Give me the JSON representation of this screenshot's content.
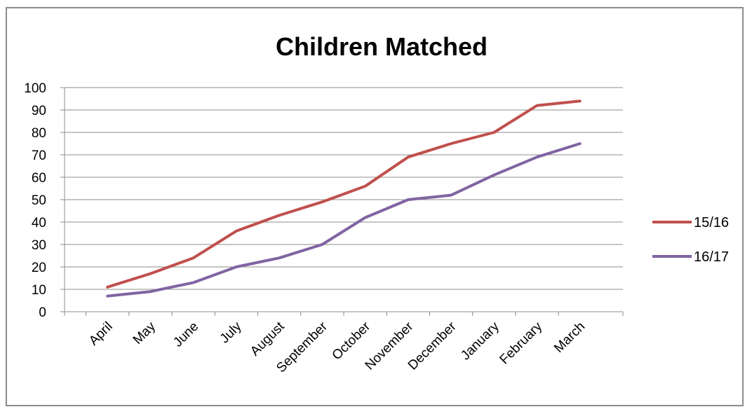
{
  "chart_data": {
    "type": "line",
    "title": "Children Matched",
    "xlabel": "",
    "ylabel": "",
    "categories": [
      "April",
      "May",
      "June",
      "July",
      "August",
      "September",
      "October",
      "November",
      "December",
      "January",
      "February",
      "March"
    ],
    "ylim": [
      0,
      100
    ],
    "yticks": [
      0,
      10,
      20,
      30,
      40,
      50,
      60,
      70,
      80,
      90,
      100
    ],
    "grid": true,
    "legend_position": "right",
    "series": [
      {
        "name": "15/16",
        "color": "#c0504d",
        "values": [
          11,
          17,
          24,
          36,
          43,
          49,
          56,
          69,
          75,
          80,
          92,
          94
        ]
      },
      {
        "name": "16/17",
        "color": "#8064a2",
        "values": [
          7,
          9,
          13,
          20,
          24,
          30,
          42,
          50,
          52,
          61,
          69,
          75
        ]
      }
    ]
  }
}
